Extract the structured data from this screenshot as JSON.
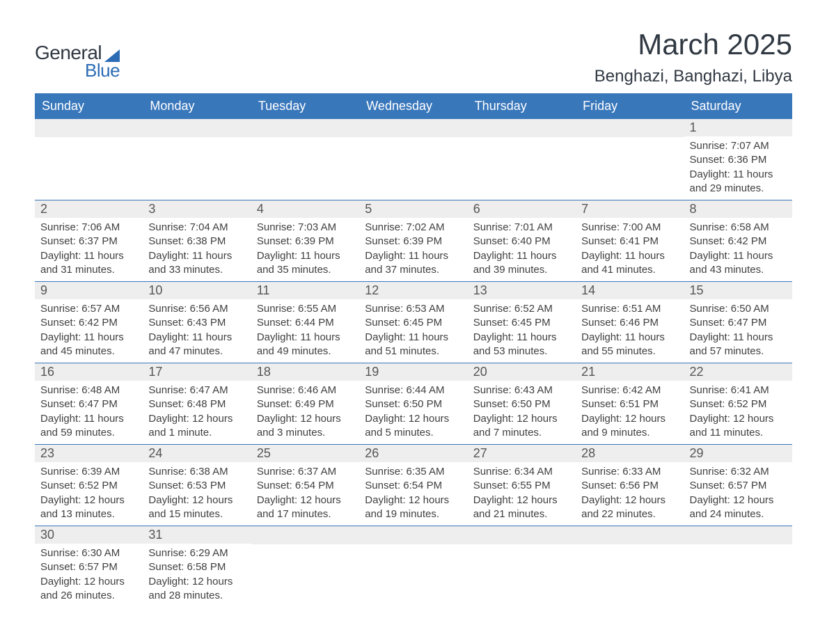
{
  "logo": {
    "text_general": "General",
    "text_blue": "Blue"
  },
  "header": {
    "month_title": "March 2025",
    "location": "Benghazi, Banghazi, Libya"
  },
  "colors": {
    "header_bg": "#3977bb",
    "header_text": "#ffffff",
    "day_number_bg": "#eeeeee",
    "day_number_text": "#555555",
    "body_text": "#404040",
    "title_text": "#303842",
    "logo_blue": "#2c6cb5",
    "row_border": "#3977bb"
  },
  "typography": {
    "month_title_fontsize": 42,
    "location_fontsize": 24,
    "header_fontsize": 18,
    "day_number_fontsize": 18,
    "content_fontsize": 15
  },
  "calendar": {
    "day_headers": [
      "Sunday",
      "Monday",
      "Tuesday",
      "Wednesday",
      "Thursday",
      "Friday",
      "Saturday"
    ],
    "weeks": [
      [
        {
          "empty": true
        },
        {
          "empty": true
        },
        {
          "empty": true
        },
        {
          "empty": true
        },
        {
          "empty": true
        },
        {
          "empty": true
        },
        {
          "day": "1",
          "sunrise": "Sunrise: 7:07 AM",
          "sunset": "Sunset: 6:36 PM",
          "daylight1": "Daylight: 11 hours",
          "daylight2": "and 29 minutes."
        }
      ],
      [
        {
          "day": "2",
          "sunrise": "Sunrise: 7:06 AM",
          "sunset": "Sunset: 6:37 PM",
          "daylight1": "Daylight: 11 hours",
          "daylight2": "and 31 minutes."
        },
        {
          "day": "3",
          "sunrise": "Sunrise: 7:04 AM",
          "sunset": "Sunset: 6:38 PM",
          "daylight1": "Daylight: 11 hours",
          "daylight2": "and 33 minutes."
        },
        {
          "day": "4",
          "sunrise": "Sunrise: 7:03 AM",
          "sunset": "Sunset: 6:39 PM",
          "daylight1": "Daylight: 11 hours",
          "daylight2": "and 35 minutes."
        },
        {
          "day": "5",
          "sunrise": "Sunrise: 7:02 AM",
          "sunset": "Sunset: 6:39 PM",
          "daylight1": "Daylight: 11 hours",
          "daylight2": "and 37 minutes."
        },
        {
          "day": "6",
          "sunrise": "Sunrise: 7:01 AM",
          "sunset": "Sunset: 6:40 PM",
          "daylight1": "Daylight: 11 hours",
          "daylight2": "and 39 minutes."
        },
        {
          "day": "7",
          "sunrise": "Sunrise: 7:00 AM",
          "sunset": "Sunset: 6:41 PM",
          "daylight1": "Daylight: 11 hours",
          "daylight2": "and 41 minutes."
        },
        {
          "day": "8",
          "sunrise": "Sunrise: 6:58 AM",
          "sunset": "Sunset: 6:42 PM",
          "daylight1": "Daylight: 11 hours",
          "daylight2": "and 43 minutes."
        }
      ],
      [
        {
          "day": "9",
          "sunrise": "Sunrise: 6:57 AM",
          "sunset": "Sunset: 6:42 PM",
          "daylight1": "Daylight: 11 hours",
          "daylight2": "and 45 minutes."
        },
        {
          "day": "10",
          "sunrise": "Sunrise: 6:56 AM",
          "sunset": "Sunset: 6:43 PM",
          "daylight1": "Daylight: 11 hours",
          "daylight2": "and 47 minutes."
        },
        {
          "day": "11",
          "sunrise": "Sunrise: 6:55 AM",
          "sunset": "Sunset: 6:44 PM",
          "daylight1": "Daylight: 11 hours",
          "daylight2": "and 49 minutes."
        },
        {
          "day": "12",
          "sunrise": "Sunrise: 6:53 AM",
          "sunset": "Sunset: 6:45 PM",
          "daylight1": "Daylight: 11 hours",
          "daylight2": "and 51 minutes."
        },
        {
          "day": "13",
          "sunrise": "Sunrise: 6:52 AM",
          "sunset": "Sunset: 6:45 PM",
          "daylight1": "Daylight: 11 hours",
          "daylight2": "and 53 minutes."
        },
        {
          "day": "14",
          "sunrise": "Sunrise: 6:51 AM",
          "sunset": "Sunset: 6:46 PM",
          "daylight1": "Daylight: 11 hours",
          "daylight2": "and 55 minutes."
        },
        {
          "day": "15",
          "sunrise": "Sunrise: 6:50 AM",
          "sunset": "Sunset: 6:47 PM",
          "daylight1": "Daylight: 11 hours",
          "daylight2": "and 57 minutes."
        }
      ],
      [
        {
          "day": "16",
          "sunrise": "Sunrise: 6:48 AM",
          "sunset": "Sunset: 6:47 PM",
          "daylight1": "Daylight: 11 hours",
          "daylight2": "and 59 minutes."
        },
        {
          "day": "17",
          "sunrise": "Sunrise: 6:47 AM",
          "sunset": "Sunset: 6:48 PM",
          "daylight1": "Daylight: 12 hours",
          "daylight2": "and 1 minute."
        },
        {
          "day": "18",
          "sunrise": "Sunrise: 6:46 AM",
          "sunset": "Sunset: 6:49 PM",
          "daylight1": "Daylight: 12 hours",
          "daylight2": "and 3 minutes."
        },
        {
          "day": "19",
          "sunrise": "Sunrise: 6:44 AM",
          "sunset": "Sunset: 6:50 PM",
          "daylight1": "Daylight: 12 hours",
          "daylight2": "and 5 minutes."
        },
        {
          "day": "20",
          "sunrise": "Sunrise: 6:43 AM",
          "sunset": "Sunset: 6:50 PM",
          "daylight1": "Daylight: 12 hours",
          "daylight2": "and 7 minutes."
        },
        {
          "day": "21",
          "sunrise": "Sunrise: 6:42 AM",
          "sunset": "Sunset: 6:51 PM",
          "daylight1": "Daylight: 12 hours",
          "daylight2": "and 9 minutes."
        },
        {
          "day": "22",
          "sunrise": "Sunrise: 6:41 AM",
          "sunset": "Sunset: 6:52 PM",
          "daylight1": "Daylight: 12 hours",
          "daylight2": "and 11 minutes."
        }
      ],
      [
        {
          "day": "23",
          "sunrise": "Sunrise: 6:39 AM",
          "sunset": "Sunset: 6:52 PM",
          "daylight1": "Daylight: 12 hours",
          "daylight2": "and 13 minutes."
        },
        {
          "day": "24",
          "sunrise": "Sunrise: 6:38 AM",
          "sunset": "Sunset: 6:53 PM",
          "daylight1": "Daylight: 12 hours",
          "daylight2": "and 15 minutes."
        },
        {
          "day": "25",
          "sunrise": "Sunrise: 6:37 AM",
          "sunset": "Sunset: 6:54 PM",
          "daylight1": "Daylight: 12 hours",
          "daylight2": "and 17 minutes."
        },
        {
          "day": "26",
          "sunrise": "Sunrise: 6:35 AM",
          "sunset": "Sunset: 6:54 PM",
          "daylight1": "Daylight: 12 hours",
          "daylight2": "and 19 minutes."
        },
        {
          "day": "27",
          "sunrise": "Sunrise: 6:34 AM",
          "sunset": "Sunset: 6:55 PM",
          "daylight1": "Daylight: 12 hours",
          "daylight2": "and 21 minutes."
        },
        {
          "day": "28",
          "sunrise": "Sunrise: 6:33 AM",
          "sunset": "Sunset: 6:56 PM",
          "daylight1": "Daylight: 12 hours",
          "daylight2": "and 22 minutes."
        },
        {
          "day": "29",
          "sunrise": "Sunrise: 6:32 AM",
          "sunset": "Sunset: 6:57 PM",
          "daylight1": "Daylight: 12 hours",
          "daylight2": "and 24 minutes."
        }
      ],
      [
        {
          "day": "30",
          "sunrise": "Sunrise: 6:30 AM",
          "sunset": "Sunset: 6:57 PM",
          "daylight1": "Daylight: 12 hours",
          "daylight2": "and 26 minutes."
        },
        {
          "day": "31",
          "sunrise": "Sunrise: 6:29 AM",
          "sunset": "Sunset: 6:58 PM",
          "daylight1": "Daylight: 12 hours",
          "daylight2": "and 28 minutes."
        },
        {
          "empty": true
        },
        {
          "empty": true
        },
        {
          "empty": true
        },
        {
          "empty": true
        },
        {
          "empty": true
        }
      ]
    ]
  }
}
